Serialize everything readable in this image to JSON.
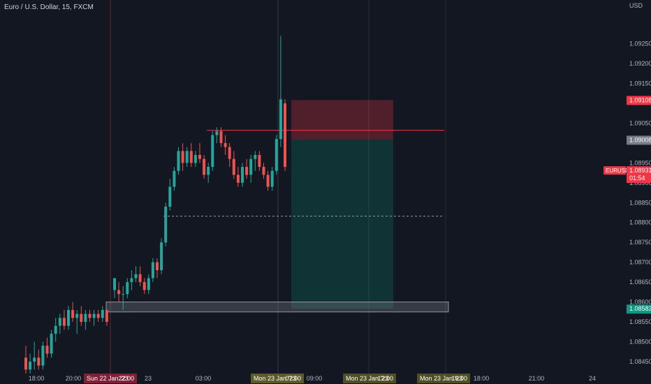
{
  "header": {
    "symbol_title": "Euro / U.S. Dollar, 15, FXCM"
  },
  "chart_data": {
    "type": "candlestick",
    "currency_label": "USD",
    "y_ticks": [
      "1.09250",
      "1.09200",
      "1.09150",
      "1.09050",
      "1.08950",
      "1.08900",
      "1.08850",
      "1.08800",
      "1.08750",
      "1.08700",
      "1.08650",
      "1.08600",
      "1.08550",
      "1.08500",
      "1.08450"
    ],
    "x_ticks": [
      "18:00",
      "20:00",
      "23",
      "03:00",
      "09:00",
      "18:00",
      "21:00",
      "24"
    ],
    "ylim": [
      1.0842,
      1.0936
    ],
    "price_labels": {
      "stop": "1.09108",
      "entry": "1.09008",
      "current_symbol": "EURUSD",
      "current_price": "1.08931",
      "countdown": "01:54",
      "target": "1.08583"
    },
    "time_labels": {
      "session_start": "Sun 22 Jan '23",
      "session_start_time": "22:00",
      "cursor_date": "Mon 23 Jan '23",
      "cursor_time": "07:00",
      "position_left_date": "Mon 23 Jan '23",
      "position_left_time": "12:00",
      "position_right_date": "Mon 23 Jan '23",
      "position_right_time": "16:00"
    },
    "position": {
      "stop_price": 1.09108,
      "entry_price": 1.09008,
      "target_price": 1.08583
    },
    "horizontal_levels": [
      1.09032,
      1.08816
    ],
    "support_zone": [
      1.08575,
      1.086
    ],
    "colors": {
      "up": "#26a69a",
      "down": "#ef5350",
      "stop_zone": "#f23645",
      "target_zone": "#089981"
    },
    "candles": [
      {
        "o": 1.0846,
        "h": 1.0849,
        "l": 1.0842,
        "c": 1.0843
      },
      {
        "o": 1.0843,
        "h": 1.0847,
        "l": 1.0842,
        "c": 1.0845
      },
      {
        "o": 1.0845,
        "h": 1.085,
        "l": 1.0843,
        "c": 1.0846
      },
      {
        "o": 1.0846,
        "h": 1.0848,
        "l": 1.0843,
        "c": 1.0844
      },
      {
        "o": 1.0844,
        "h": 1.085,
        "l": 1.0843,
        "c": 1.0849
      },
      {
        "o": 1.0849,
        "h": 1.0851,
        "l": 1.0846,
        "c": 1.0847
      },
      {
        "o": 1.0847,
        "h": 1.0853,
        "l": 1.0846,
        "c": 1.0852
      },
      {
        "o": 1.0852,
        "h": 1.0856,
        "l": 1.085,
        "c": 1.0854
      },
      {
        "o": 1.0854,
        "h": 1.0857,
        "l": 1.0852,
        "c": 1.0856
      },
      {
        "o": 1.0856,
        "h": 1.0858,
        "l": 1.0853,
        "c": 1.0854
      },
      {
        "o": 1.0854,
        "h": 1.0859,
        "l": 1.0853,
        "c": 1.0858
      },
      {
        "o": 1.0858,
        "h": 1.086,
        "l": 1.0855,
        "c": 1.0856
      },
      {
        "o": 1.0856,
        "h": 1.0858,
        "l": 1.0852,
        "c": 1.0857
      },
      {
        "o": 1.0857,
        "h": 1.0859,
        "l": 1.0854,
        "c": 1.0855
      },
      {
        "o": 1.0855,
        "h": 1.0858,
        "l": 1.0853,
        "c": 1.0857
      },
      {
        "o": 1.0857,
        "h": 1.0858,
        "l": 1.0855,
        "c": 1.0856
      },
      {
        "o": 1.0856,
        "h": 1.0858,
        "l": 1.0854,
        "c": 1.0857
      },
      {
        "o": 1.0857,
        "h": 1.0858,
        "l": 1.0855,
        "c": 1.0856
      },
      {
        "o": 1.0856,
        "h": 1.0859,
        "l": 1.0855,
        "c": 1.0858
      },
      {
        "o": 1.0858,
        "h": 1.0858,
        "l": 1.0854,
        "c": 1.0855
      },
      {
        "o": 1.0863,
        "h": 1.0866,
        "l": 1.0861,
        "c": 1.0866
      },
      {
        "o": 1.0863,
        "h": 1.0865,
        "l": 1.086,
        "c": 1.0862
      },
      {
        "o": 1.0862,
        "h": 1.0864,
        "l": 1.0858,
        "c": 1.0862
      },
      {
        "o": 1.0862,
        "h": 1.0866,
        "l": 1.0861,
        "c": 1.0865
      },
      {
        "o": 1.0865,
        "h": 1.0868,
        "l": 1.0863,
        "c": 1.0866
      },
      {
        "o": 1.0866,
        "h": 1.0869,
        "l": 1.0865,
        "c": 1.0867
      },
      {
        "o": 1.0867,
        "h": 1.0869,
        "l": 1.0864,
        "c": 1.0865
      },
      {
        "o": 1.0865,
        "h": 1.0866,
        "l": 1.0862,
        "c": 1.0863
      },
      {
        "o": 1.0863,
        "h": 1.0867,
        "l": 1.0862,
        "c": 1.0866
      },
      {
        "o": 1.0866,
        "h": 1.0871,
        "l": 1.0865,
        "c": 1.087
      },
      {
        "o": 1.087,
        "h": 1.0871,
        "l": 1.0866,
        "c": 1.0868
      },
      {
        "o": 1.0868,
        "h": 1.0876,
        "l": 1.0867,
        "c": 1.0875
      },
      {
        "o": 1.0875,
        "h": 1.0885,
        "l": 1.0874,
        "c": 1.0884
      },
      {
        "o": 1.0884,
        "h": 1.0891,
        "l": 1.0883,
        "c": 1.0889
      },
      {
        "o": 1.0889,
        "h": 1.0894,
        "l": 1.0888,
        "c": 1.0893
      },
      {
        "o": 1.0893,
        "h": 1.0899,
        "l": 1.0892,
        "c": 1.0898
      },
      {
        "o": 1.0898,
        "h": 1.09,
        "l": 1.0893,
        "c": 1.0895
      },
      {
        "o": 1.0895,
        "h": 1.0899,
        "l": 1.0894,
        "c": 1.0898
      },
      {
        "o": 1.0898,
        "h": 1.09,
        "l": 1.0894,
        "c": 1.0895
      },
      {
        "o": 1.0895,
        "h": 1.0898,
        "l": 1.0894,
        "c": 1.0897
      },
      {
        "o": 1.0897,
        "h": 1.09,
        "l": 1.0895,
        "c": 1.0896
      },
      {
        "o": 1.0896,
        "h": 1.0897,
        "l": 1.0891,
        "c": 1.0892
      },
      {
        "o": 1.0892,
        "h": 1.0895,
        "l": 1.089,
        "c": 1.0894
      },
      {
        "o": 1.0894,
        "h": 1.0903,
        "l": 1.0893,
        "c": 1.0902
      },
      {
        "o": 1.0902,
        "h": 1.0904,
        "l": 1.09,
        "c": 1.0903
      },
      {
        "o": 1.0903,
        "h": 1.0904,
        "l": 1.0899,
        "c": 1.09
      },
      {
        "o": 1.09,
        "h": 1.0902,
        "l": 1.0897,
        "c": 1.0899
      },
      {
        "o": 1.0899,
        "h": 1.09,
        "l": 1.0894,
        "c": 1.0896
      },
      {
        "o": 1.0896,
        "h": 1.0898,
        "l": 1.0891,
        "c": 1.0892
      },
      {
        "o": 1.0892,
        "h": 1.0894,
        "l": 1.0889,
        "c": 1.089
      },
      {
        "o": 1.089,
        "h": 1.0895,
        "l": 1.0889,
        "c": 1.0894
      },
      {
        "o": 1.0894,
        "h": 1.0896,
        "l": 1.0891,
        "c": 1.0892
      },
      {
        "o": 1.0892,
        "h": 1.0897,
        "l": 1.089,
        "c": 1.0896
      },
      {
        "o": 1.0896,
        "h": 1.0898,
        "l": 1.0893,
        "c": 1.0897
      },
      {
        "o": 1.0897,
        "h": 1.0898,
        "l": 1.0893,
        "c": 1.0894
      },
      {
        "o": 1.0894,
        "h": 1.0895,
        "l": 1.0891,
        "c": 1.0892
      },
      {
        "o": 1.0892,
        "h": 1.0893,
        "l": 1.0888,
        "c": 1.0889
      },
      {
        "o": 1.0889,
        "h": 1.0894,
        "l": 1.0888,
        "c": 1.0893
      },
      {
        "o": 1.0893,
        "h": 1.0902,
        "l": 1.0892,
        "c": 1.0901
      },
      {
        "o": 1.0901,
        "h": 1.0927,
        "l": 1.0899,
        "c": 1.0911
      },
      {
        "o": 1.091,
        "h": 1.0911,
        "l": 1.0893,
        "c": 1.0894
      }
    ]
  }
}
